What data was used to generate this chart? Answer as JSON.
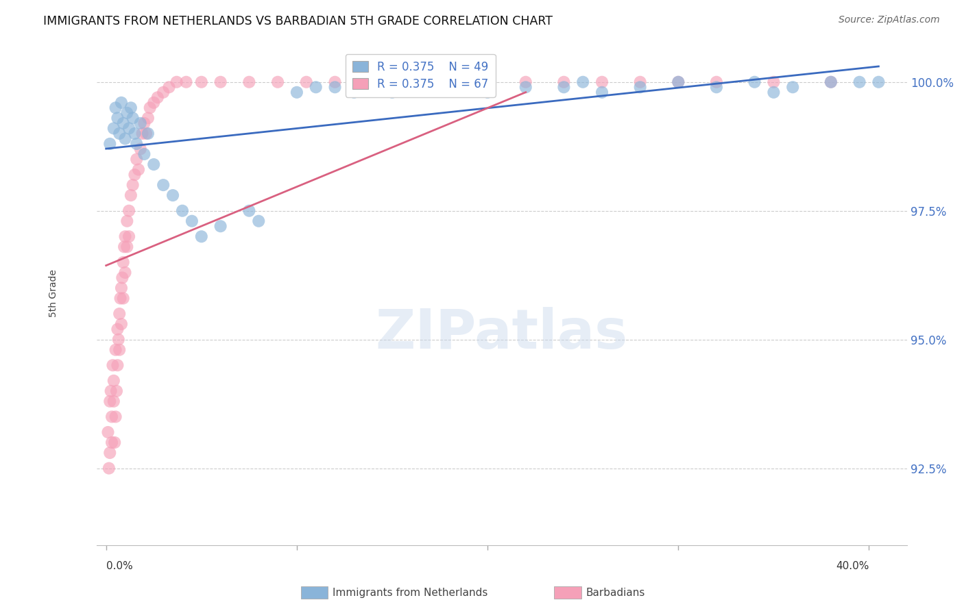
{
  "title": "IMMIGRANTS FROM NETHERLANDS VS BARBADIAN 5TH GRADE CORRELATION CHART",
  "source": "Source: ZipAtlas.com",
  "ylabel": "5th Grade",
  "y_tick_vals": [
    92.5,
    95.0,
    97.5,
    100.0
  ],
  "x_tick_vals": [
    0.0,
    10.0,
    20.0,
    30.0,
    40.0
  ],
  "ylim_bottom": 91.0,
  "ylim_top": 100.8,
  "xlim_left": -0.5,
  "xlim_right": 42.0,
  "blue_R": 0.375,
  "blue_N": 49,
  "pink_R": 0.375,
  "pink_N": 67,
  "blue_color": "#8ab4d9",
  "pink_color": "#f5a0b8",
  "blue_line_color": "#3a6abf",
  "pink_line_color": "#d96080",
  "legend_label_blue": "Immigrants from Netherlands",
  "legend_label_pink": "Barbadians",
  "blue_x": [
    0.2,
    0.4,
    0.5,
    0.6,
    0.7,
    0.8,
    0.9,
    1.0,
    1.1,
    1.2,
    1.3,
    1.4,
    1.5,
    1.6,
    1.8,
    2.0,
    2.2,
    2.5,
    3.0,
    3.5,
    4.0,
    4.5,
    5.0,
    6.0,
    7.5,
    8.0,
    10.0,
    11.0,
    12.0,
    13.0,
    14.0,
    15.0,
    17.0,
    18.0,
    19.0,
    20.0,
    22.0,
    24.0,
    25.0,
    26.0,
    28.0,
    30.0,
    32.0,
    34.0,
    35.0,
    36.0,
    38.0,
    39.5,
    40.5
  ],
  "blue_y": [
    98.8,
    99.1,
    99.5,
    99.3,
    99.0,
    99.6,
    99.2,
    98.9,
    99.4,
    99.1,
    99.5,
    99.3,
    99.0,
    98.8,
    99.2,
    98.6,
    99.0,
    98.4,
    98.0,
    97.8,
    97.5,
    97.3,
    97.0,
    97.2,
    97.5,
    97.3,
    99.8,
    99.9,
    99.9,
    99.8,
    99.9,
    99.8,
    99.9,
    99.9,
    100.0,
    99.8,
    99.9,
    99.9,
    100.0,
    99.8,
    99.9,
    100.0,
    99.9,
    100.0,
    99.8,
    99.9,
    100.0,
    100.0,
    100.0
  ],
  "pink_x": [
    0.1,
    0.15,
    0.2,
    0.2,
    0.25,
    0.3,
    0.3,
    0.35,
    0.4,
    0.4,
    0.45,
    0.5,
    0.5,
    0.55,
    0.6,
    0.6,
    0.65,
    0.7,
    0.7,
    0.75,
    0.8,
    0.8,
    0.85,
    0.9,
    0.9,
    0.95,
    1.0,
    1.0,
    1.1,
    1.1,
    1.2,
    1.2,
    1.3,
    1.4,
    1.5,
    1.6,
    1.7,
    1.8,
    1.9,
    2.0,
    2.1,
    2.2,
    2.3,
    2.5,
    2.7,
    3.0,
    3.3,
    3.7,
    4.2,
    5.0,
    6.0,
    7.5,
    9.0,
    10.5,
    12.0,
    14.0,
    16.0,
    18.0,
    20.0,
    22.0,
    24.0,
    26.0,
    28.0,
    30.0,
    32.0,
    35.0,
    38.0
  ],
  "pink_y": [
    93.2,
    92.5,
    93.8,
    92.8,
    94.0,
    93.5,
    93.0,
    94.5,
    93.8,
    94.2,
    93.0,
    94.8,
    93.5,
    94.0,
    95.2,
    94.5,
    95.0,
    95.5,
    94.8,
    95.8,
    96.0,
    95.3,
    96.2,
    96.5,
    95.8,
    96.8,
    97.0,
    96.3,
    97.3,
    96.8,
    97.5,
    97.0,
    97.8,
    98.0,
    98.2,
    98.5,
    98.3,
    98.7,
    99.0,
    99.2,
    99.0,
    99.3,
    99.5,
    99.6,
    99.7,
    99.8,
    99.9,
    100.0,
    100.0,
    100.0,
    100.0,
    100.0,
    100.0,
    100.0,
    100.0,
    100.0,
    100.0,
    100.0,
    100.0,
    100.0,
    100.0,
    100.0,
    100.0,
    100.0,
    100.0,
    100.0,
    100.0
  ]
}
